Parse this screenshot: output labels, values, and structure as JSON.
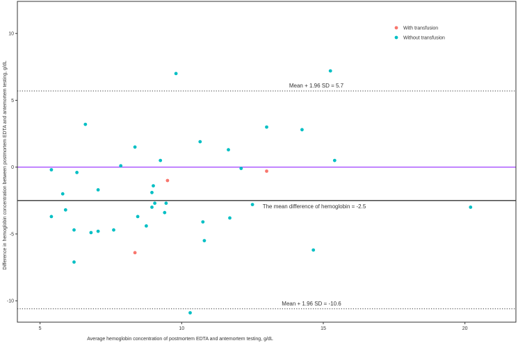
{
  "chart_data": {
    "type": "scatter",
    "title": "",
    "xlabel": "Average hemoglobin concentration of postmortem EDTA and antemortem testing, g/dL",
    "ylabel": "Difference in hemoglobin concentration between postmortem EDTA and antemortem testing, g/dL",
    "xlim": [
      4.2,
      21.8
    ],
    "ylim": [
      -11.6,
      12.4
    ],
    "x_ticks": [
      5,
      10,
      15,
      20
    ],
    "y_ticks": [
      10,
      5,
      0,
      -5,
      -10
    ],
    "grid": false,
    "legend_position": "top-right",
    "series": [
      {
        "name": "With transfusion",
        "color": "#F8766D",
        "points": [
          [
            9.5,
            -1.0
          ],
          [
            13.0,
            -0.3
          ],
          [
            8.35,
            -6.4
          ]
        ]
      },
      {
        "name": "Without transfusion",
        "color": "#00BFC4",
        "points": [
          [
            5.4,
            -0.2
          ],
          [
            5.8,
            -2.0
          ],
          [
            5.9,
            -3.2
          ],
          [
            5.4,
            -3.7
          ],
          [
            6.2,
            -4.7
          ],
          [
            6.3,
            -0.4
          ],
          [
            6.2,
            -7.1
          ],
          [
            6.6,
            3.2
          ],
          [
            6.8,
            -4.9
          ],
          [
            7.05,
            -4.8
          ],
          [
            7.05,
            -1.7
          ],
          [
            7.6,
            -4.7
          ],
          [
            7.85,
            0.1
          ],
          [
            8.35,
            1.5
          ],
          [
            8.45,
            -3.7
          ],
          [
            8.75,
            -4.4
          ],
          [
            8.95,
            -1.9
          ],
          [
            8.95,
            -3.0
          ],
          [
            9.0,
            -1.4
          ],
          [
            9.05,
            -2.7
          ],
          [
            9.25,
            0.5
          ],
          [
            9.4,
            -3.4
          ],
          [
            9.45,
            -2.7
          ],
          [
            9.8,
            7.0
          ],
          [
            10.3,
            -10.9
          ],
          [
            10.65,
            1.9
          ],
          [
            10.75,
            -4.1
          ],
          [
            10.8,
            -5.5
          ],
          [
            11.65,
            1.3
          ],
          [
            11.7,
            -3.8
          ],
          [
            12.1,
            -0.1
          ],
          [
            12.5,
            -2.8
          ],
          [
            13.0,
            3.0
          ],
          [
            14.25,
            2.8
          ],
          [
            14.65,
            -6.2
          ],
          [
            15.25,
            7.2
          ],
          [
            15.4,
            0.5
          ],
          [
            20.2,
            -3.0
          ]
        ]
      }
    ],
    "reference_lines": [
      {
        "value": 5.7,
        "style": "dotted",
        "color": "#333333",
        "label": "Mean + 1.96 SD = 5.7"
      },
      {
        "value": 0,
        "style": "solid",
        "color": "#A64DFF",
        "label": ""
      },
      {
        "value": -2.5,
        "style": "solid",
        "color": "#333333",
        "label": "The mean difference of hemoglobin = -2.5"
      },
      {
        "value": -10.6,
        "style": "dotted",
        "color": "#333333",
        "label": "Mean + 1.96 SD = -10.6"
      }
    ]
  }
}
